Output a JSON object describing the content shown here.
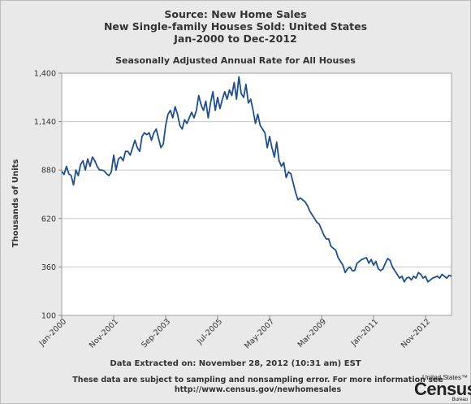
{
  "header": {
    "title_line1": "Source: New Home Sales",
    "title_line2": "New Single-family Houses Sold: United States",
    "title_line3": "Jan-2000 to Dec-2012"
  },
  "footer": {
    "extracted": "Data Extracted on: November 28, 2012 (10:31 am) EST",
    "note_line1": "These data are subject to sampling and nonsampling error. For more information see",
    "note_line2": "http://www.census.gov/newhomesales"
  },
  "logo": {
    "top": "United States™",
    "main": "Census",
    "sub": "Bureau"
  },
  "chart_data": {
    "type": "line",
    "title": "Seasonally Adjusted Annual Rate for All Houses",
    "xlabel": "",
    "ylabel": "Thousands of Units",
    "ylim": [
      100,
      1400
    ],
    "yticks": [
      100,
      360,
      620,
      880,
      1140,
      1400
    ],
    "ytick_labels": [
      "100",
      "360",
      "620",
      "880",
      "1,140",
      "1,400"
    ],
    "xtick_labels": [
      "Jan-2000",
      "Nov-2001",
      "Sep-2003",
      "Jul-2005",
      "May-2007",
      "Mar-2009",
      "Jan-2011",
      "Nov-2012"
    ],
    "xtick_index": [
      0,
      22,
      44,
      66,
      88,
      110,
      132,
      154
    ],
    "grid": "horizontal",
    "line_color": "#1f4e8c",
    "series": [
      {
        "values": [
          873,
          856,
          900,
          860,
          850,
          800,
          880,
          850,
          910,
          930,
          880,
          940,
          900,
          950,
          930,
          900,
          880,
          880,
          875,
          860,
          850,
          870,
          960,
          880,
          940,
          950,
          930,
          980,
          980,
          960,
          1000,
          1040,
          1000,
          980,
          1060,
          1080,
          1070,
          1080,
          1040,
          1080,
          1100,
          1050,
          1000,
          1020,
          1120,
          1180,
          1200,
          1160,
          1220,
          1180,
          1120,
          1100,
          1150,
          1130,
          1160,
          1190,
          1160,
          1200,
          1280,
          1230,
          1200,
          1250,
          1160,
          1240,
          1300,
          1200,
          1270,
          1210,
          1260,
          1300,
          1260,
          1310,
          1280,
          1350,
          1260,
          1380,
          1290,
          1270,
          1340,
          1240,
          1260,
          1200,
          1130,
          1180,
          1120,
          1100,
          1080,
          1000,
          1060,
          1000,
          950,
          1030,
          930,
          900,
          920,
          840,
          870,
          860,
          810,
          760,
          720,
          730,
          720,
          710,
          690,
          660,
          640,
          620,
          600,
          590,
          560,
          530,
          510,
          510,
          470,
          460,
          450,
          410,
          390,
          370,
          330,
          350,
          360,
          340,
          340,
          380,
          390,
          400,
          405,
          410,
          380,
          400,
          370,
          390,
          350,
          340,
          350,
          380,
          405,
          395,
          360,
          340,
          320,
          300,
          310,
          280,
          300,
          305,
          290,
          310,
          300,
          330,
          320,
          300,
          310,
          280,
          290,
          300,
          305,
          310,
          300,
          320,
          310,
          300,
          315,
          310
        ]
      }
    ]
  }
}
